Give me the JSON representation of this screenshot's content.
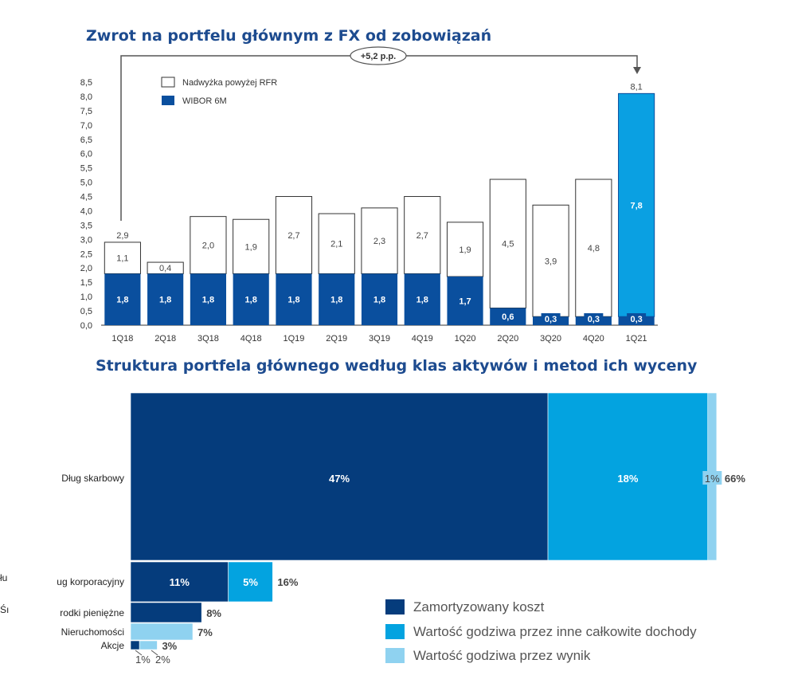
{
  "chart_data": [
    {
      "type": "bar",
      "stacked": true,
      "title": "Zwrot na portfelu głównym z FX od zobowiązań",
      "categories": [
        "1Q18",
        "2Q18",
        "3Q18",
        "4Q18",
        "1Q19",
        "2Q19",
        "3Q19",
        "4Q19",
        "1Q20",
        "2Q20",
        "3Q20",
        "4Q20",
        "1Q21"
      ],
      "series": [
        {
          "name": "WIBOR 6M",
          "color": "#0a4f9e",
          "values": [
            1.8,
            1.8,
            1.8,
            1.8,
            1.8,
            1.8,
            1.8,
            1.8,
            1.7,
            0.6,
            0.3,
            0.3,
            0.3
          ],
          "labels": [
            "1,8",
            "1,8",
            "1,8",
            "1,8",
            "1,8",
            "1,8",
            "1,8",
            "1,8",
            "1,7",
            "0,6",
            "0,3",
            "0,3",
            "0,3"
          ]
        },
        {
          "name": "Nadwyżka powyżej RFR",
          "color": "#ffffff",
          "values": [
            1.1,
            0.4,
            2.0,
            1.9,
            2.7,
            2.1,
            2.3,
            2.7,
            1.9,
            4.5,
            3.9,
            4.8,
            7.8
          ],
          "labels": [
            "1,1",
            "0,4",
            "2,0",
            "1,9",
            "2,7",
            "2,1",
            "2,3",
            "2,7",
            "1,9",
            "4,5",
            "3,9",
            "4,8",
            "7,8"
          ]
        }
      ],
      "highlight_color": "#0aa0e2",
      "totals": [
        2.9,
        null,
        null,
        null,
        null,
        null,
        null,
        null,
        null,
        null,
        null,
        null,
        8.1
      ],
      "total_labels": [
        "2,9",
        "",
        "",
        "",
        "",
        "",
        "",
        "",
        "",
        "",
        "",
        "",
        "8,1"
      ],
      "ylim": [
        0,
        8.5
      ],
      "yticks": [
        "0,0",
        "0,5",
        "1,0",
        "1,5",
        "2,0",
        "2,5",
        "3,0",
        "3,5",
        "4,0",
        "4,5",
        "5,0",
        "5,5",
        "6,0",
        "6,5",
        "7,0",
        "7,5",
        "8,0",
        "8,5"
      ],
      "annotation": "+5,2 p.p.",
      "legend_placement": "top-left",
      "grid": false
    },
    {
      "type": "bar",
      "orientation": "horizontal",
      "stacked": true,
      "title": "Struktura portfela głównego według klas aktywów i metod ich wyceny",
      "categories": [
        "Dług skarbowy",
        "Dług korporacyjny",
        "Środki pieniężne",
        "Nieruchomości",
        "Akcje"
      ],
      "display_categories": [
        "Dług skarbowy",
        "ug korporacyjny",
        "rodki pieniężne",
        "Nieruchomości",
        "Akcje"
      ],
      "edge_fragments": [
        "łu",
        "Śı"
      ],
      "series": [
        {
          "name": "Zamortyzowany koszt",
          "color": "#053c7c",
          "values": [
            47,
            11,
            8,
            0,
            1
          ],
          "labels": [
            "47%",
            "11%",
            "",
            "",
            ""
          ]
        },
        {
          "name": "Wartość godziwa przez inne całkowite dochody",
          "color": "#03a3e0",
          "values": [
            18,
            5,
            0,
            0,
            0
          ],
          "labels": [
            "18%",
            "5%",
            "",
            "",
            ""
          ]
        },
        {
          "name": "Wartość godziwa przez wynik",
          "color": "#8fd2f0",
          "values": [
            1,
            0,
            0,
            7,
            2
          ],
          "labels": [
            "1%",
            "",
            "",
            "",
            ""
          ]
        }
      ],
      "totals": [
        66,
        16,
        8,
        7,
        3
      ],
      "total_labels": [
        "66%",
        "16%",
        "8%",
        "7%",
        "3%"
      ],
      "akcje_labels": [
        "1%",
        "2%"
      ],
      "legend_placement": "bottom-right"
    }
  ]
}
